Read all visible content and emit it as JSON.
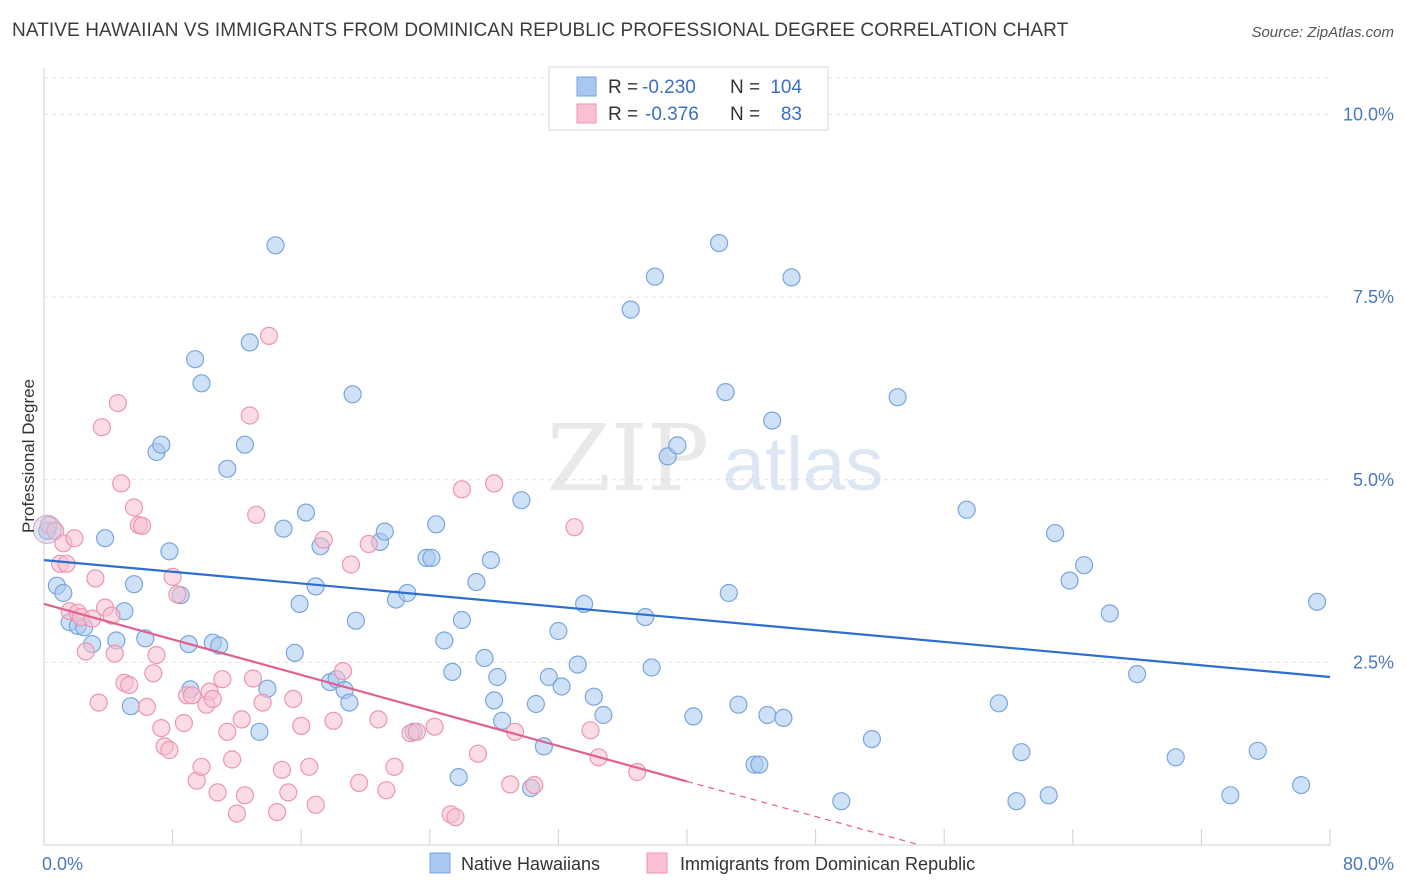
{
  "title": "NATIVE HAWAIIAN VS IMMIGRANTS FROM DOMINICAN REPUBLIC PROFESSIONAL DEGREE CORRELATION CHART",
  "source": "Source: ZipAtlas.com",
  "watermark": {
    "zip": "ZIP",
    "atlas": "atlas"
  },
  "legend": {
    "rows": [
      {
        "r_label": "R =",
        "r_value": "-0.230",
        "n_label": "N =",
        "n_value": "104",
        "color": "#a8c8f0",
        "stroke": "#7aa6dc"
      },
      {
        "r_label": "R =",
        "r_value": "-0.376",
        "n_label": "N =",
        "n_value": "83",
        "color": "#f8c0d0",
        "stroke": "#ec96b0"
      }
    ]
  },
  "bottom_legend": [
    {
      "label": "Native Hawaiians",
      "color": "#a8c8f0",
      "stroke": "#7aa6dc"
    },
    {
      "label": "Immigrants from Dominican Republic",
      "color": "#f8c0d0",
      "stroke": "#ec96b0"
    }
  ],
  "chart_data": {
    "type": "scatter",
    "title": "NATIVE HAWAIIAN VS IMMIGRANTS FROM DOMINICAN REPUBLIC PROFESSIONAL DEGREE CORRELATION CHART",
    "ylabel": "Professional Degree",
    "xlabel": "",
    "xlim": [
      0,
      80
    ],
    "ylim": [
      0,
      10.5
    ],
    "x_tick_labels": [
      {
        "value": 0,
        "label": "0.0%"
      },
      {
        "value": 80,
        "label": "80.0%"
      }
    ],
    "y_ticks": [
      {
        "value": 2.5,
        "label": "2.5%"
      },
      {
        "value": 5.0,
        "label": "5.0%"
      },
      {
        "value": 7.5,
        "label": "7.5%"
      },
      {
        "value": 10.0,
        "label": "10.0%"
      }
    ],
    "x_minor_ticks": [
      0,
      8,
      16,
      24,
      32,
      40,
      48,
      56,
      64,
      72,
      80
    ],
    "grid": true,
    "legend_position": "top-center",
    "series": [
      {
        "name": "Native Hawaiians",
        "color": "#a8c8f0",
        "stroke": "#7aa6dc",
        "line_color": "#2c6fcc",
        "trend": {
          "x": [
            0,
            80
          ],
          "y": [
            3.9,
            2.3
          ]
        },
        "points": [
          [
            0.2,
            4.3
          ],
          [
            0.8,
            3.55
          ],
          [
            1.2,
            3.45
          ],
          [
            1.6,
            3.05
          ],
          [
            2.1,
            3.0
          ],
          [
            2.5,
            2.98
          ],
          [
            3.0,
            2.75
          ],
          [
            3.8,
            4.2
          ],
          [
            4.5,
            2.8
          ],
          [
            5.0,
            3.2
          ],
          [
            5.4,
            1.9
          ],
          [
            5.6,
            3.57
          ],
          [
            6.3,
            2.83
          ],
          [
            7.0,
            5.38
          ],
          [
            7.3,
            5.48
          ],
          [
            7.8,
            4.02
          ],
          [
            8.5,
            3.42
          ],
          [
            9.0,
            2.75
          ],
          [
            9.1,
            2.13
          ],
          [
            9.4,
            6.65
          ],
          [
            9.8,
            6.32
          ],
          [
            10.5,
            2.77
          ],
          [
            10.9,
            2.73
          ],
          [
            11.4,
            5.15
          ],
          [
            12.5,
            5.48
          ],
          [
            12.8,
            6.88
          ],
          [
            13.4,
            1.55
          ],
          [
            13.9,
            2.14
          ],
          [
            14.4,
            8.21
          ],
          [
            14.9,
            4.33
          ],
          [
            15.6,
            2.63
          ],
          [
            15.9,
            3.3
          ],
          [
            16.3,
            4.55
          ],
          [
            16.9,
            3.54
          ],
          [
            17.2,
            4.09
          ],
          [
            17.8,
            2.23
          ],
          [
            18.2,
            2.27
          ],
          [
            18.7,
            2.12
          ],
          [
            19.0,
            1.95
          ],
          [
            19.2,
            6.17
          ],
          [
            19.4,
            3.07
          ],
          [
            20.9,
            4.15
          ],
          [
            21.2,
            4.29
          ],
          [
            21.9,
            3.36
          ],
          [
            22.6,
            3.45
          ],
          [
            23.0,
            1.55
          ],
          [
            23.8,
            3.93
          ],
          [
            24.1,
            3.93
          ],
          [
            24.4,
            4.39
          ],
          [
            24.9,
            2.8
          ],
          [
            25.4,
            2.37
          ],
          [
            25.8,
            0.93
          ],
          [
            26.0,
            3.08
          ],
          [
            26.9,
            3.6
          ],
          [
            27.4,
            2.56
          ],
          [
            27.8,
            3.9
          ],
          [
            28.0,
            1.98
          ],
          [
            28.2,
            2.3
          ],
          [
            28.5,
            1.7
          ],
          [
            29.7,
            4.72
          ],
          [
            30.3,
            0.78
          ],
          [
            30.6,
            1.93
          ],
          [
            31.1,
            1.35
          ],
          [
            31.4,
            2.3
          ],
          [
            32.0,
            2.93
          ],
          [
            32.2,
            2.17
          ],
          [
            33.2,
            2.47
          ],
          [
            33.6,
            3.3
          ],
          [
            34.2,
            2.03
          ],
          [
            34.8,
            1.78
          ],
          [
            36.5,
            7.33
          ],
          [
            37.4,
            3.12
          ],
          [
            37.8,
            2.43
          ],
          [
            38.0,
            7.78
          ],
          [
            38.8,
            5.32
          ],
          [
            39.4,
            5.47
          ],
          [
            40.4,
            1.76
          ],
          [
            42.0,
            8.24
          ],
          [
            42.4,
            6.2
          ],
          [
            42.6,
            3.45
          ],
          [
            43.2,
            1.92
          ],
          [
            44.2,
            1.1
          ],
          [
            44.5,
            1.1
          ],
          [
            45.0,
            1.78
          ],
          [
            45.3,
            5.81
          ],
          [
            46.0,
            1.74
          ],
          [
            46.5,
            7.77
          ],
          [
            49.6,
            0.6
          ],
          [
            51.5,
            1.45
          ],
          [
            53.1,
            6.13
          ],
          [
            57.4,
            4.59
          ],
          [
            59.4,
            1.94
          ],
          [
            60.5,
            0.6
          ],
          [
            60.8,
            1.27
          ],
          [
            62.5,
            0.68
          ],
          [
            62.9,
            4.27
          ],
          [
            63.8,
            3.62
          ],
          [
            64.7,
            3.83
          ],
          [
            66.3,
            3.17
          ],
          [
            68.0,
            2.34
          ],
          [
            70.4,
            1.2
          ],
          [
            73.8,
            0.68
          ],
          [
            75.5,
            1.29
          ],
          [
            78.2,
            0.82
          ],
          [
            79.2,
            3.33
          ]
        ]
      },
      {
        "name": "Immigrants from Dominican Republic",
        "color": "#f8c0d0",
        "stroke": "#ec96b0",
        "line_color": "#e06090",
        "trend": {
          "x": [
            0,
            40
          ],
          "y": [
            3.3,
            0.87
          ]
        },
        "trend_dashed": {
          "x": [
            40,
            54.5
          ],
          "y": [
            0.87,
            0.0
          ]
        },
        "points": [
          [
            0.3,
            4.38
          ],
          [
            0.7,
            4.3
          ],
          [
            1.0,
            3.85
          ],
          [
            1.2,
            4.13
          ],
          [
            1.4,
            3.85
          ],
          [
            1.6,
            3.2
          ],
          [
            1.9,
            4.2
          ],
          [
            2.1,
            3.18
          ],
          [
            2.3,
            3.12
          ],
          [
            2.6,
            2.65
          ],
          [
            3.0,
            3.1
          ],
          [
            3.2,
            3.65
          ],
          [
            3.4,
            1.95
          ],
          [
            3.6,
            5.72
          ],
          [
            3.8,
            3.25
          ],
          [
            4.2,
            3.14
          ],
          [
            4.4,
            2.62
          ],
          [
            4.6,
            6.05
          ],
          [
            4.8,
            4.95
          ],
          [
            5.0,
            2.22
          ],
          [
            5.3,
            2.19
          ],
          [
            5.6,
            4.62
          ],
          [
            5.9,
            4.38
          ],
          [
            6.1,
            4.37
          ],
          [
            6.4,
            1.89
          ],
          [
            6.8,
            2.35
          ],
          [
            7.0,
            2.6
          ],
          [
            7.3,
            1.6
          ],
          [
            7.5,
            1.35
          ],
          [
            7.8,
            1.3
          ],
          [
            8.0,
            3.67
          ],
          [
            8.3,
            3.43
          ],
          [
            8.7,
            1.67
          ],
          [
            8.9,
            2.05
          ],
          [
            9.2,
            2.05
          ],
          [
            9.5,
            0.88
          ],
          [
            9.8,
            1.07
          ],
          [
            10.1,
            1.92
          ],
          [
            10.3,
            2.1
          ],
          [
            10.5,
            2.0
          ],
          [
            10.8,
            0.72
          ],
          [
            11.1,
            2.27
          ],
          [
            11.4,
            1.55
          ],
          [
            11.7,
            1.17
          ],
          [
            12.0,
            0.43
          ],
          [
            12.3,
            1.72
          ],
          [
            12.5,
            0.68
          ],
          [
            12.8,
            5.88
          ],
          [
            13.0,
            2.28
          ],
          [
            13.2,
            4.52
          ],
          [
            13.6,
            1.95
          ],
          [
            14.0,
            6.97
          ],
          [
            14.5,
            0.45
          ],
          [
            14.8,
            1.03
          ],
          [
            15.2,
            0.72
          ],
          [
            15.5,
            2.0
          ],
          [
            16.0,
            1.63
          ],
          [
            16.5,
            1.07
          ],
          [
            16.9,
            0.55
          ],
          [
            17.4,
            4.18
          ],
          [
            18.0,
            1.7
          ],
          [
            18.6,
            2.38
          ],
          [
            19.1,
            3.84
          ],
          [
            19.6,
            0.85
          ],
          [
            20.2,
            4.12
          ],
          [
            20.8,
            1.72
          ],
          [
            21.3,
            0.75
          ],
          [
            21.8,
            1.07
          ],
          [
            22.8,
            1.53
          ],
          [
            23.2,
            1.55
          ],
          [
            24.3,
            1.62
          ],
          [
            25.3,
            0.42
          ],
          [
            25.6,
            0.38
          ],
          [
            26.0,
            4.87
          ],
          [
            27.0,
            1.25
          ],
          [
            28.0,
            4.95
          ],
          [
            29.0,
            0.83
          ],
          [
            29.3,
            1.55
          ],
          [
            30.5,
            0.82
          ],
          [
            33.0,
            4.35
          ],
          [
            34.0,
            1.57
          ],
          [
            34.5,
            1.2
          ],
          [
            36.9,
            1.0
          ]
        ]
      }
    ]
  }
}
